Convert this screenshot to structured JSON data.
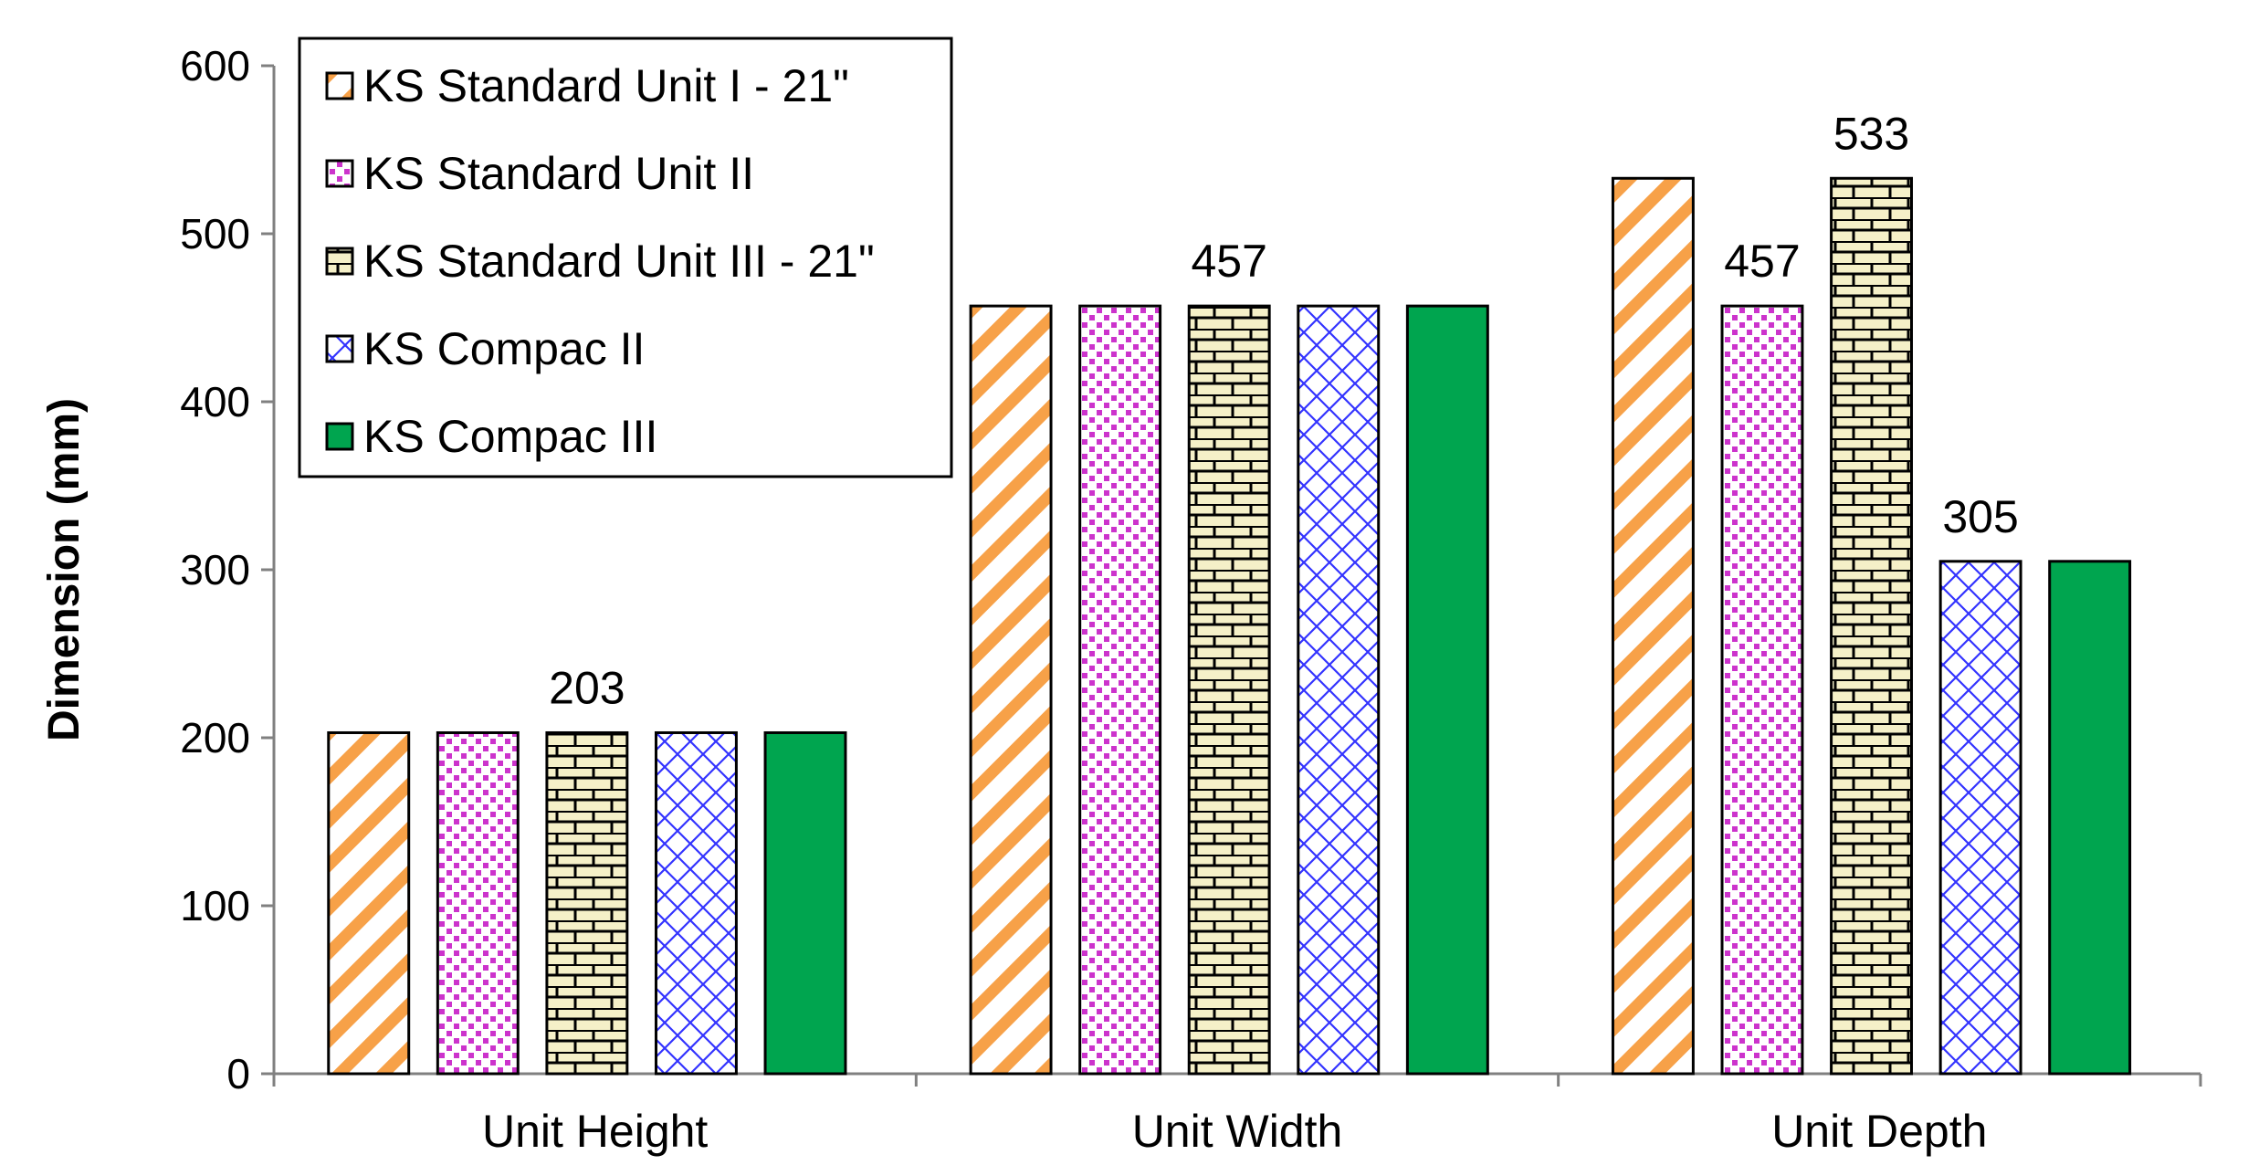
{
  "chart_data": {
    "type": "bar",
    "title": "",
    "xlabel": "",
    "ylabel": "Dimension (mm)",
    "ylim": [
      0,
      600
    ],
    "yticks": [
      0,
      100,
      200,
      300,
      400,
      500,
      600
    ],
    "grid": false,
    "legend_position": "top-left",
    "categories": [
      "Unit Height",
      "Unit Width",
      "Unit Depth"
    ],
    "series": [
      {
        "name": "KS Standard Unit I - 21\"",
        "values": [
          203,
          457,
          533
        ],
        "pattern": "diagonal-orange",
        "color": "#f7a148"
      },
      {
        "name": "KS Standard Unit II",
        "values": [
          203,
          457,
          457
        ],
        "pattern": "dots-magenta",
        "color": "#cc33cc"
      },
      {
        "name": "KS Standard Unit III - 21\"",
        "values": [
          203,
          457,
          533
        ],
        "pattern": "brick-tan",
        "color": "#f5f0c8"
      },
      {
        "name": "KS Compac  II",
        "values": [
          203,
          457,
          305
        ],
        "pattern": "crosshatch-blue",
        "color": "#3333ff"
      },
      {
        "name": "KS Compac III",
        "values": [
          203,
          457,
          305
        ],
        "pattern": "solid-green",
        "color": "#00a54f"
      }
    ],
    "data_labels": [
      {
        "text": "203",
        "category": 0,
        "series": 2,
        "value": 203
      },
      {
        "text": "457",
        "category": 1,
        "series": 2,
        "value": 457
      },
      {
        "text": "457",
        "category": 2,
        "series": 1,
        "value": 457
      },
      {
        "text": "533",
        "category": 2,
        "series": 2,
        "value": 533
      },
      {
        "text": "305",
        "category": 2,
        "series": 3,
        "value": 305
      }
    ]
  }
}
